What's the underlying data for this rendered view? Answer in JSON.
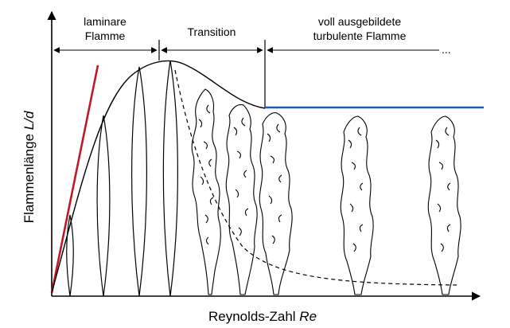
{
  "regions": {
    "laminar_line1": "laminare",
    "laminar_line2": "Flamme",
    "transition": "Transition",
    "turbulent_line1": "voll ausgebildete",
    "turbulent_line2": "turbulente Flamme",
    "continuation": "..."
  },
  "axes": {
    "x_label_main": "Reynolds-Zahl ",
    "x_label_symbol": "Re",
    "y_label_main": "Flammenlänge ",
    "y_label_symbol": "L/d"
  },
  "colors": {
    "laminar_slope_line": "#c0182a",
    "turbulent_plateau_line": "#1f5fa8",
    "ink": "#000000"
  }
}
